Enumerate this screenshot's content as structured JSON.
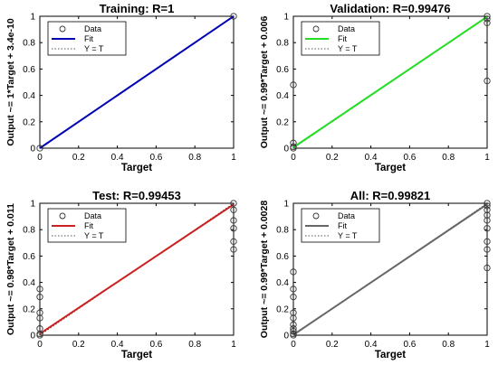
{
  "chart_data": [
    {
      "type": "scatter",
      "title": "Training: R=1",
      "xlabel": "Target",
      "ylabel": "Output ~= 1*Target + 3.4e-10",
      "xlim": [
        0,
        1
      ],
      "ylim": [
        0,
        1
      ],
      "xticks": [
        "0",
        "0.2",
        "0.4",
        "0.6",
        "0.8",
        "1"
      ],
      "yticks": [
        "0",
        "0.2",
        "0.4",
        "0.6",
        "0.8",
        "1"
      ],
      "grid": false,
      "legend_position": "top-left",
      "legend": [
        "Data",
        "Fit",
        "Y = T"
      ],
      "fit_color": "#0000b4",
      "fit": {
        "slope": 1,
        "intercept": 3.4e-10
      },
      "series": [
        {
          "name": "Data",
          "x": [
            0,
            1
          ],
          "y": [
            0,
            1
          ]
        }
      ]
    },
    {
      "type": "scatter",
      "title": "Validation: R=0.99476",
      "xlabel": "Target",
      "ylabel": "Output ~= 0.99*Target + 0.006",
      "xlim": [
        0,
        1
      ],
      "ylim": [
        0,
        1
      ],
      "xticks": [
        "0",
        "0.2",
        "0.4",
        "0.6",
        "0.8",
        "1"
      ],
      "yticks": [
        "0",
        "0.2",
        "0.4",
        "0.6",
        "0.8",
        "1"
      ],
      "grid": false,
      "legend_position": "top-left",
      "legend": [
        "Data",
        "Fit",
        "Y = T"
      ],
      "fit_color": "#22dd22",
      "fit": {
        "slope": 0.99,
        "intercept": 0.006
      },
      "series": [
        {
          "name": "Data",
          "x": [
            0,
            0,
            0,
            0,
            1,
            1,
            1,
            1
          ],
          "y": [
            0,
            0.04,
            0.01,
            0.48,
            1,
            0.98,
            0.95,
            0.51
          ]
        }
      ]
    },
    {
      "type": "scatter",
      "title": "Test: R=0.99453",
      "xlabel": "Target",
      "ylabel": "Output ~= 0.98*Target + 0.011",
      "xlim": [
        0,
        1
      ],
      "ylim": [
        0,
        1
      ],
      "xticks": [
        "0",
        "0.2",
        "0.4",
        "0.6",
        "0.8",
        "1"
      ],
      "yticks": [
        "0",
        "0.2",
        "0.4",
        "0.6",
        "0.8",
        "1"
      ],
      "grid": false,
      "legend_position": "top-left",
      "legend": [
        "Data",
        "Fit",
        "Y = T"
      ],
      "fit_color": "#cc1f1f",
      "fit": {
        "slope": 0.98,
        "intercept": 0.011
      },
      "series": [
        {
          "name": "Data",
          "x": [
            0,
            0,
            0,
            0,
            0,
            0,
            0,
            1,
            1,
            1,
            1,
            1,
            1
          ],
          "y": [
            0.35,
            0.29,
            0.17,
            0.13,
            0.05,
            0.01,
            0,
            1,
            0.95,
            0.87,
            0.81,
            0.71,
            0.65
          ]
        }
      ]
    },
    {
      "type": "scatter",
      "title": "All: R=0.99821",
      "xlabel": "Target",
      "ylabel": "Output ~= 0.99*Target + 0.0028",
      "xlim": [
        0,
        1
      ],
      "ylim": [
        0,
        1
      ],
      "xticks": [
        "0",
        "0.2",
        "0.4",
        "0.6",
        "0.8",
        "1"
      ],
      "yticks": [
        "0",
        "0.2",
        "0.4",
        "0.6",
        "0.8",
        "1"
      ],
      "grid": false,
      "legend_position": "top-left",
      "legend": [
        "Data",
        "Fit",
        "Y = T"
      ],
      "fit_color": "#666666",
      "fit": {
        "slope": 0.99,
        "intercept": 0.0028
      },
      "series": [
        {
          "name": "Data",
          "x": [
            0,
            0,
            0,
            0,
            0,
            0,
            0,
            0,
            0,
            0,
            1,
            1,
            1,
            1,
            1,
            1,
            1,
            1,
            1
          ],
          "y": [
            0.48,
            0.35,
            0.29,
            0.17,
            0.13,
            0.08,
            0.05,
            0.03,
            0.01,
            0,
            1,
            0.98,
            0.95,
            0.91,
            0.87,
            0.81,
            0.71,
            0.65,
            0.51
          ]
        }
      ]
    }
  ]
}
